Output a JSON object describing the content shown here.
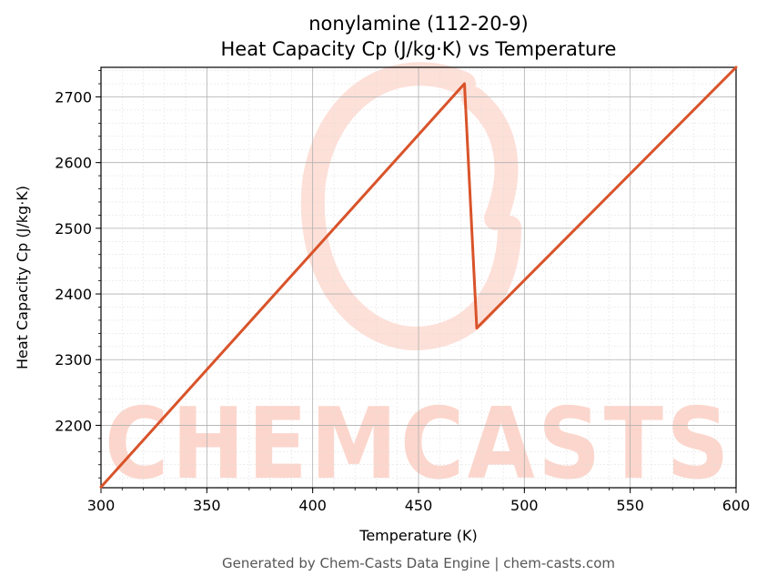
{
  "chart_data": {
    "type": "line",
    "title": "nonylamine (112-20-9)",
    "subtitle": "Heat Capacity Cp (J/kg·K) vs Temperature",
    "xlabel": "Temperature (K)",
    "ylabel": "Heat Capacity Cp (J/kg·K)",
    "xlim": [
      300,
      600
    ],
    "ylim": [
      2105,
      2745
    ],
    "x_ticks": [
      300,
      350,
      400,
      450,
      500,
      550,
      600
    ],
    "y_ticks": [
      2200,
      2300,
      2400,
      2500,
      2600,
      2700
    ],
    "grid": true,
    "series": [
      {
        "color": "#d9532a",
        "x": [
          300,
          471.7,
          477.5,
          600
        ],
        "y": [
          2106,
          2720,
          2348,
          2745
        ]
      }
    ]
  },
  "watermark": {
    "text": "CHEMCASTS",
    "color": "#fcd6cc"
  },
  "footer": "Generated by Chem-Casts Data Engine | chem-casts.com"
}
